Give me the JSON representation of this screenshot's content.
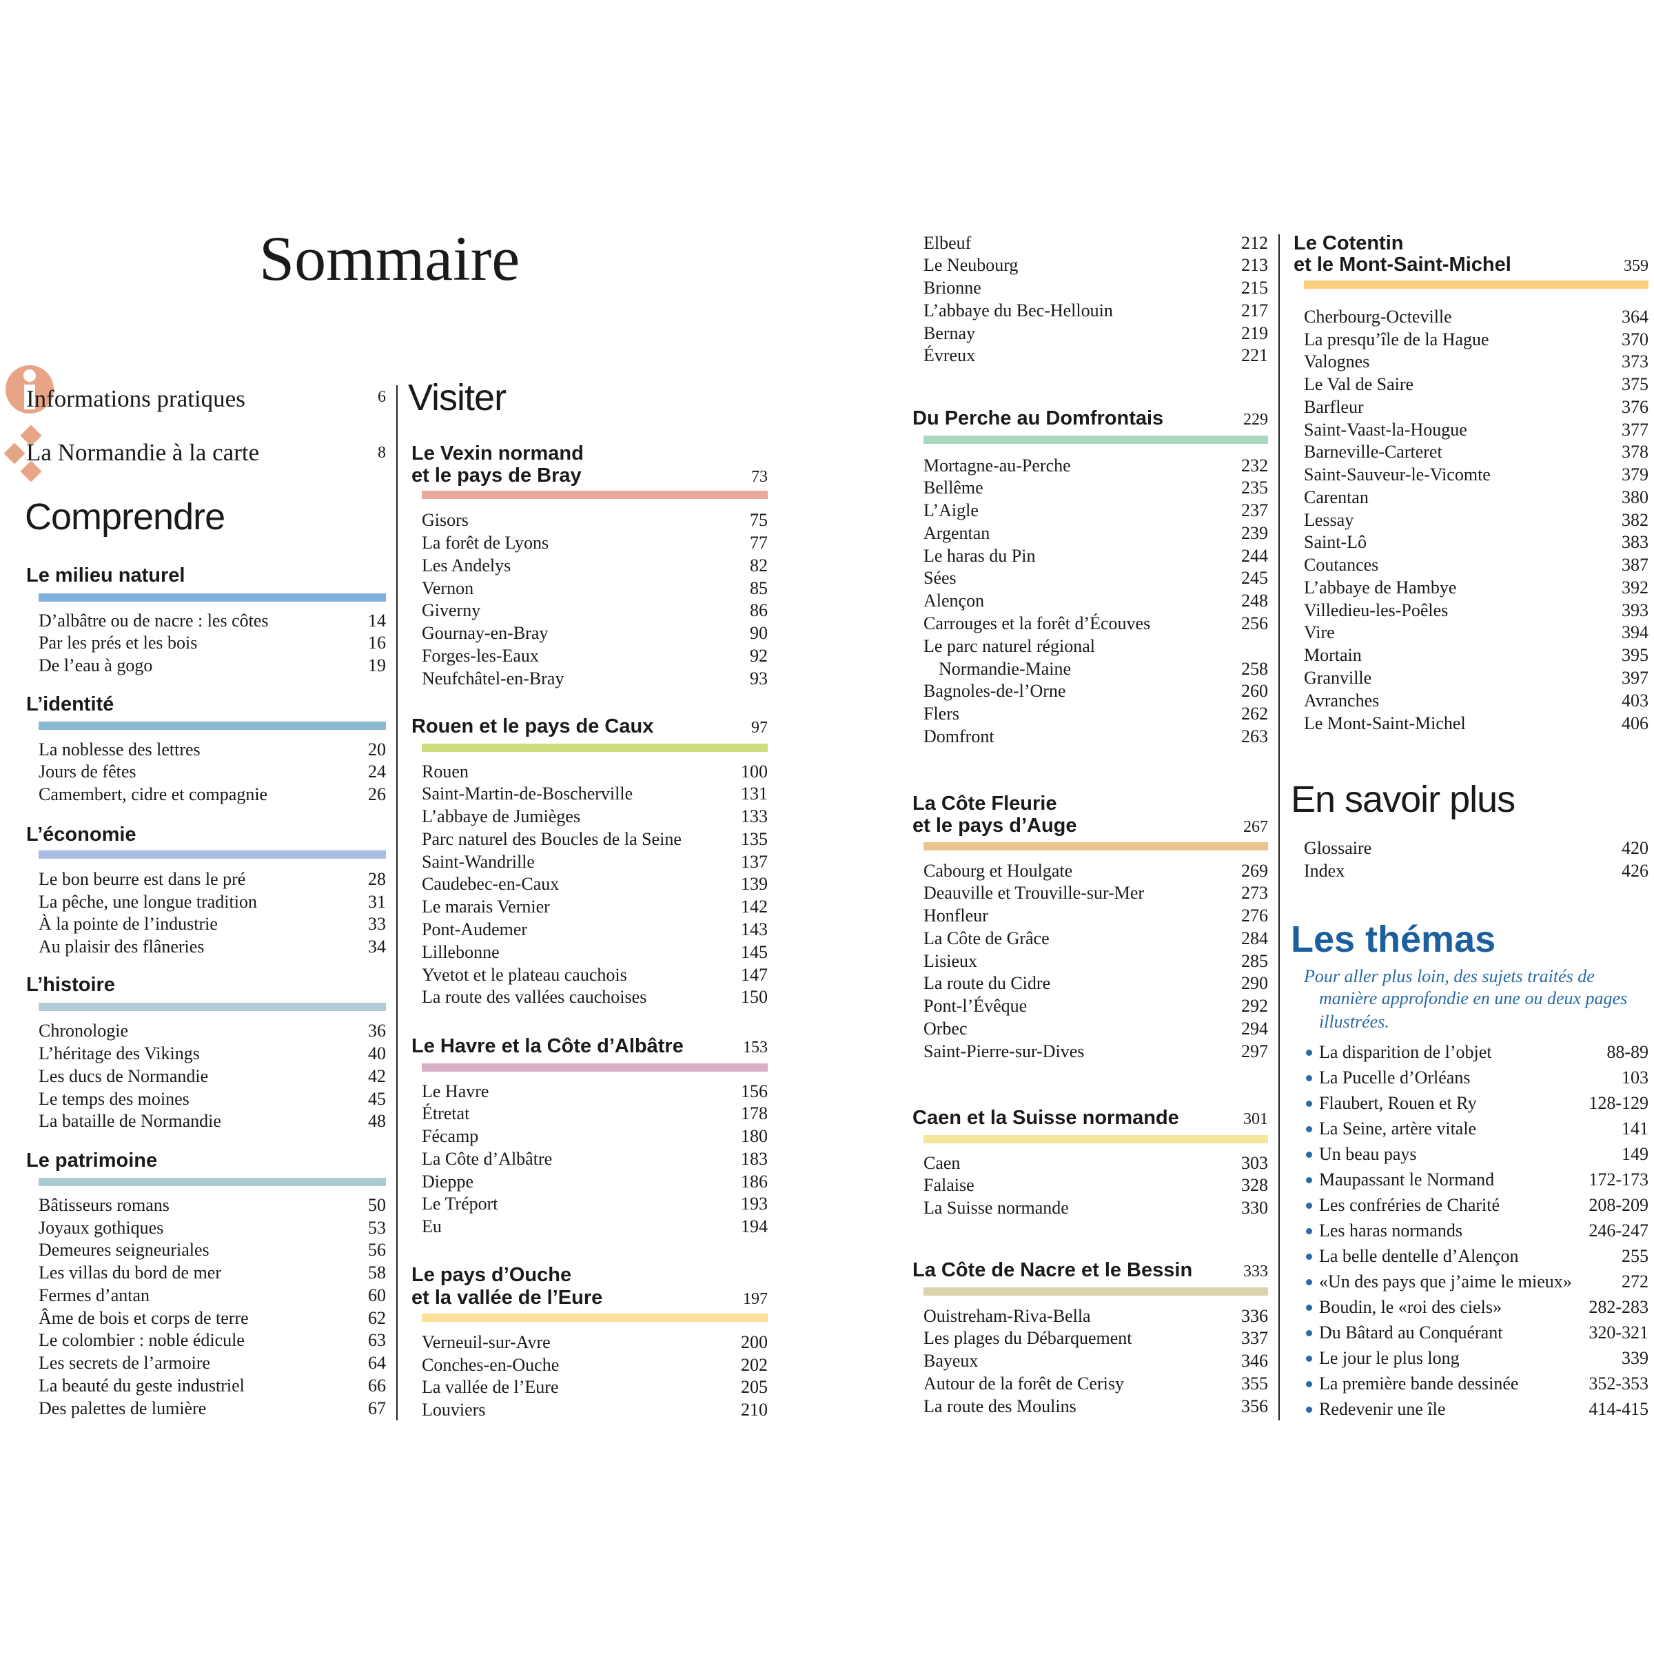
{
  "title": "Sommaire",
  "top_links": [
    {
      "label": "Informations pratiques",
      "page": "6",
      "icon": "info-icon"
    },
    {
      "label": "La Normandie à la carte",
      "page": "8",
      "icon": "diamonds-map-icon"
    }
  ],
  "accent_icon_color": "#e8a486",
  "headings": {
    "comprendre": "Comprendre",
    "visiter": "Visiter",
    "en_savoir_plus": "En savoir plus",
    "themas": "Les thémas"
  },
  "comprendre": [
    {
      "title": [
        "Le milieu naturel"
      ],
      "color": "#7fb0dc",
      "items": [
        {
          "label": "D’albâtre ou de nacre : les côtes",
          "page": "14"
        },
        {
          "label": "Par les prés et les bois",
          "page": "16"
        },
        {
          "label": "De l’eau à gogo",
          "page": "19"
        }
      ]
    },
    {
      "title": [
        "L’identité"
      ],
      "color": "#8bbad0",
      "items": [
        {
          "label": "La noblesse des lettres",
          "page": "20"
        },
        {
          "label": "Jours de fêtes",
          "page": "24"
        },
        {
          "label": "Camembert, cidre et compagnie",
          "page": "26"
        }
      ]
    },
    {
      "title": [
        "L’économie"
      ],
      "color": "#a7bde2",
      "items": [
        {
          "label": "Le bon beurre est dans le pré",
          "page": "28"
        },
        {
          "label": "La pêche, une longue tradition",
          "page": "31"
        },
        {
          "label": "À la pointe de l’industrie",
          "page": "33"
        },
        {
          "label": "Au plaisir des flâneries",
          "page": "34"
        }
      ]
    },
    {
      "title": [
        "L’histoire"
      ],
      "color": "#b3cdd6",
      "items": [
        {
          "label": "Chronologie",
          "page": "36"
        },
        {
          "label": "L’héritage des Vikings",
          "page": "40"
        },
        {
          "label": "Les ducs de Normandie",
          "page": "42"
        },
        {
          "label": "Le temps des moines",
          "page": "45"
        },
        {
          "label": "La bataille de Normandie",
          "page": "48"
        }
      ]
    },
    {
      "title": [
        "Le patrimoine"
      ],
      "color": "#a9cbd3",
      "items": [
        {
          "label": "Bâtisseurs romans",
          "page": "50"
        },
        {
          "label": "Joyaux gothiques",
          "page": "53"
        },
        {
          "label": "Demeures seigneuriales",
          "page": "56"
        },
        {
          "label": "Les villas du bord de mer",
          "page": "58"
        },
        {
          "label": "Fermes d’antan",
          "page": "60"
        },
        {
          "label": "Âme de bois et corps de terre",
          "page": "62"
        },
        {
          "label": "Le colombier : noble édicule",
          "page": "63"
        },
        {
          "label": "Les secrets de l’armoire",
          "page": "64"
        },
        {
          "label": "La beauté du geste industriel",
          "page": "66"
        },
        {
          "label": "Des palettes de lumière",
          "page": "67"
        }
      ]
    }
  ],
  "visiter": [
    {
      "title": [
        "Le Vexin normand",
        "et le pays de Bray"
      ],
      "page": "73",
      "color": "#e8a89a",
      "items": [
        {
          "label": "Gisors",
          "page": "75"
        },
        {
          "label": "La forêt de Lyons",
          "page": "77"
        },
        {
          "label": "Les Andelys",
          "page": "82"
        },
        {
          "label": "Vernon",
          "page": "85"
        },
        {
          "label": "Giverny",
          "page": "86"
        },
        {
          "label": "Gournay-en-Bray",
          "page": "90"
        },
        {
          "label": "Forges-les-Eaux",
          "page": "92"
        },
        {
          "label": "Neufchâtel-en-Bray",
          "page": "93"
        }
      ]
    },
    {
      "title": [
        "Rouen et le pays de Caux"
      ],
      "page": "97",
      "color": "#cfdc7c",
      "items": [
        {
          "label": "Rouen",
          "page": "100"
        },
        {
          "label": "Saint-Martin-de-Boscherville",
          "page": "131"
        },
        {
          "label": "L’abbaye de Jumièges",
          "page": "133"
        },
        {
          "label": "Parc naturel des Boucles de la Seine",
          "page": "135"
        },
        {
          "label": "Saint-Wandrille",
          "page": "137"
        },
        {
          "label": "Caudebec-en-Caux",
          "page": "139"
        },
        {
          "label": "Le marais Vernier",
          "page": "142"
        },
        {
          "label": "Pont-Audemer",
          "page": "143"
        },
        {
          "label": "Lillebonne",
          "page": "145"
        },
        {
          "label": "Yvetot et le plateau cauchois",
          "page": "147"
        },
        {
          "label": "La route des vallées cauchoises",
          "page": "150"
        }
      ]
    },
    {
      "title": [
        "Le Havre et la Côte d’Albâtre"
      ],
      "page": "153",
      "color": "#d9afc6",
      "items": [
        {
          "label": "Le Havre",
          "page": "156"
        },
        {
          "label": "Étretat",
          "page": "178"
        },
        {
          "label": "Fécamp",
          "page": "180"
        },
        {
          "label": "La Côte d’Albâtre",
          "page": "183"
        },
        {
          "label": "Dieppe",
          "page": "186"
        },
        {
          "label": "Le Tréport",
          "page": "193"
        },
        {
          "label": "Eu",
          "page": "194"
        }
      ]
    },
    {
      "title": [
        "Le pays d’Ouche",
        "et la vallée de l’Eure"
      ],
      "page": "197",
      "color": "#fbe09a",
      "items": [
        {
          "label": "Verneuil-sur-Avre",
          "page": "200"
        },
        {
          "label": "Conches-en-Ouche",
          "page": "202"
        },
        {
          "label": "La vallée de l’Eure",
          "page": "205"
        },
        {
          "label": "Louviers",
          "page": "210"
        }
      ]
    },
    {
      "title": [],
      "items": [
        {
          "label": "Elbeuf",
          "page": "212"
        },
        {
          "label": "Le Neubourg",
          "page": "213"
        },
        {
          "label": "Brionne",
          "page": "215"
        },
        {
          "label": "L’abbaye du Bec-Hellouin",
          "page": "217"
        },
        {
          "label": "Bernay",
          "page": "219"
        },
        {
          "label": "Évreux",
          "page": "221"
        }
      ]
    },
    {
      "title": [
        "Du Perche au Domfrontais"
      ],
      "page": "229",
      "color": "#a9d8be",
      "items": [
        {
          "label": "Mortagne-au-Perche",
          "page": "232"
        },
        {
          "label": "Bellême",
          "page": "235"
        },
        {
          "label": "L’Aigle",
          "page": "237"
        },
        {
          "label": "Argentan",
          "page": "239"
        },
        {
          "label": "Le haras du Pin",
          "page": "244"
        },
        {
          "label": "Sées",
          "page": "245"
        },
        {
          "label": "Alençon",
          "page": "248"
        },
        {
          "label": "Carrouges et la forêt d’Écouves",
          "page": "256"
        },
        {
          "label": "Le parc naturel régional",
          "label2": "Normandie-Maine",
          "page": "258"
        },
        {
          "label": "Bagnoles-de-l’Orne",
          "page": "260"
        },
        {
          "label": "Flers",
          "page": "262"
        },
        {
          "label": "Domfront",
          "page": "263"
        }
      ]
    },
    {
      "title": [
        "La Côte Fleurie",
        "et le pays d’Auge"
      ],
      "page": "267",
      "color": "#ecc48e",
      "items": [
        {
          "label": "Cabourg et Houlgate",
          "page": "269"
        },
        {
          "label": "Deauville et Trouville-sur-Mer",
          "page": "273"
        },
        {
          "label": "Honfleur",
          "page": "276"
        },
        {
          "label": "La Côte de Grâce",
          "page": "284"
        },
        {
          "label": "Lisieux",
          "page": "285"
        },
        {
          "label": "La route du Cidre",
          "page": "290"
        },
        {
          "label": "Pont-l’Évêque",
          "page": "292"
        },
        {
          "label": "Orbec",
          "page": "294"
        },
        {
          "label": "Saint-Pierre-sur-Dives",
          "page": "297"
        }
      ]
    },
    {
      "title": [
        "Caen et la Suisse normande"
      ],
      "page": "301",
      "color": "#f4e69a",
      "items": [
        {
          "label": "Caen",
          "page": "303"
        },
        {
          "label": "Falaise",
          "page": "328"
        },
        {
          "label": "La Suisse normande",
          "page": "330"
        }
      ]
    },
    {
      "title": [
        "La Côte de Nacre et le Bessin"
      ],
      "page": "333",
      "color": "#d9d4ae",
      "items": [
        {
          "label": "Ouistreham-Riva-Bella",
          "page": "336"
        },
        {
          "label": "Les plages du Débarquement",
          "page": "337"
        },
        {
          "label": "Bayeux",
          "page": "346"
        },
        {
          "label": "Autour de la forêt de Cerisy",
          "page": "355"
        },
        {
          "label": "La route des Moulins",
          "page": "356"
        }
      ]
    },
    {
      "title": [
        "Le Cotentin",
        "et le Mont-Saint-Michel"
      ],
      "page": "359",
      "color": "#f9cf7d",
      "items": [
        {
          "label": "Cherbourg-Octeville",
          "page": "364"
        },
        {
          "label": "La presqu’île de la Hague",
          "page": "370"
        },
        {
          "label": "Valognes",
          "page": "373"
        },
        {
          "label": "Le Val de Saire",
          "page": "375"
        },
        {
          "label": "Barfleur",
          "page": "376"
        },
        {
          "label": "Saint-Vaast-la-Hougue",
          "page": "377"
        },
        {
          "label": "Barneville-Carteret",
          "page": "378"
        },
        {
          "label": "Saint-Sauveur-le-Vicomte",
          "page": "379"
        },
        {
          "label": "Carentan",
          "page": "380"
        },
        {
          "label": "Lessay",
          "page": "382"
        },
        {
          "label": "Saint-Lô",
          "page": "383"
        },
        {
          "label": "Coutances",
          "page": "387"
        },
        {
          "label": "L’abbaye de Hambye",
          "page": "392"
        },
        {
          "label": "Villedieu-les-Poêles",
          "page": "393"
        },
        {
          "label": "Vire",
          "page": "394"
        },
        {
          "label": "Mortain",
          "page": "395"
        },
        {
          "label": "Granville",
          "page": "397"
        },
        {
          "label": "Avranches",
          "page": "403"
        },
        {
          "label": "Le Mont-Saint-Michel",
          "page": "406"
        }
      ]
    }
  ],
  "en_savoir_plus": [
    {
      "label": "Glossaire",
      "page": "420"
    },
    {
      "label": "Index",
      "page": "426"
    }
  ],
  "themas": {
    "intro": [
      "Pour aller plus loin, des sujets traités de",
      "manière approfondie en une ou deux pages",
      "illustrées."
    ],
    "color": "#1b5f9e",
    "items": [
      {
        "label": "La disparition de l’objet",
        "page": "88-89"
      },
      {
        "label": "La Pucelle d’Orléans",
        "page": "103"
      },
      {
        "label": "Flaubert, Rouen et Ry",
        "page": "128-129"
      },
      {
        "label": "La Seine, artère vitale",
        "page": "141"
      },
      {
        "label": "Un beau pays",
        "page": "149"
      },
      {
        "label": "Maupassant le Normand",
        "page": "172-173"
      },
      {
        "label": "Les confréries de Charité",
        "page": "208-209"
      },
      {
        "label": "Les haras normands",
        "page": "246-247"
      },
      {
        "label": "La belle dentelle d’Alençon",
        "page": "255"
      },
      {
        "label": "«Un des pays que j’aime le mieux»",
        "page": "272"
      },
      {
        "label": "Boudin, le «roi des ciels»",
        "page": "282-283"
      },
      {
        "label": "Du Bâtard au Conquérant",
        "page": "320-321"
      },
      {
        "label": "Le jour le plus long",
        "page": "339"
      },
      {
        "label": "La première bande dessinée",
        "page": "352-353"
      },
      {
        "label": "Redevenir une île",
        "page": "414-415"
      }
    ]
  }
}
